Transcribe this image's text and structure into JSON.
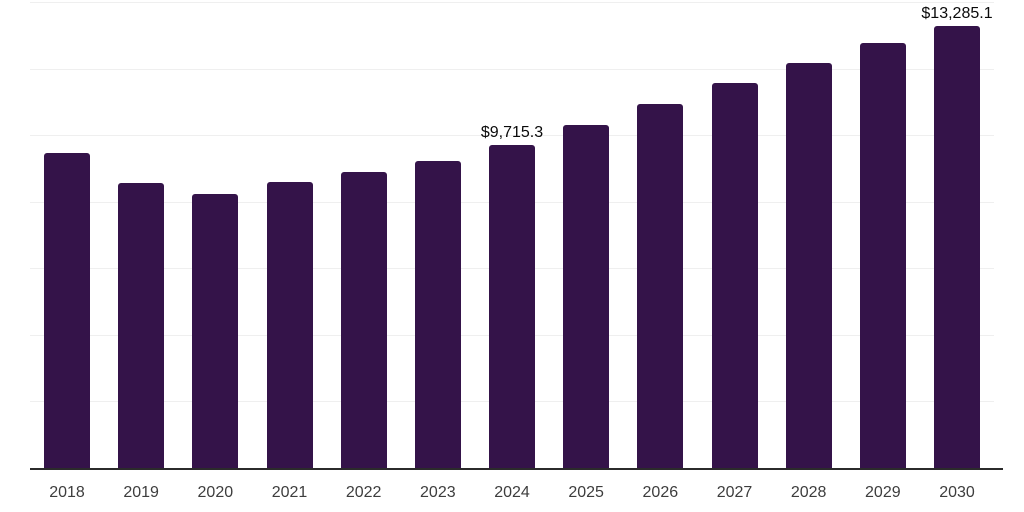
{
  "chart_data": {
    "type": "bar",
    "title": "",
    "xlabel": "",
    "ylabel": "",
    "categories": [
      "2018",
      "2019",
      "2020",
      "2021",
      "2022",
      "2023",
      "2024",
      "2025",
      "2026",
      "2027",
      "2028",
      "2029",
      "2030"
    ],
    "values": [
      9460,
      8580,
      8230,
      8590,
      8900,
      9240,
      9715.3,
      10310,
      10940,
      11580,
      12170,
      12770,
      13285.1
    ],
    "value_labels": {
      "2024": "$9,715.3",
      "2030": "$13,285.1"
    },
    "ylim": [
      0,
      14000
    ],
    "grid_step": 2000,
    "grid": true,
    "legend": false,
    "y_axis_labels_visible": false
  },
  "colors": {
    "bar": "#341349",
    "gridline": "#efefef",
    "axis_line": "#2b2b2b",
    "tick_label": "#3d3d3d",
    "data_label": "#0a0a0a",
    "background": "#ffffff"
  }
}
